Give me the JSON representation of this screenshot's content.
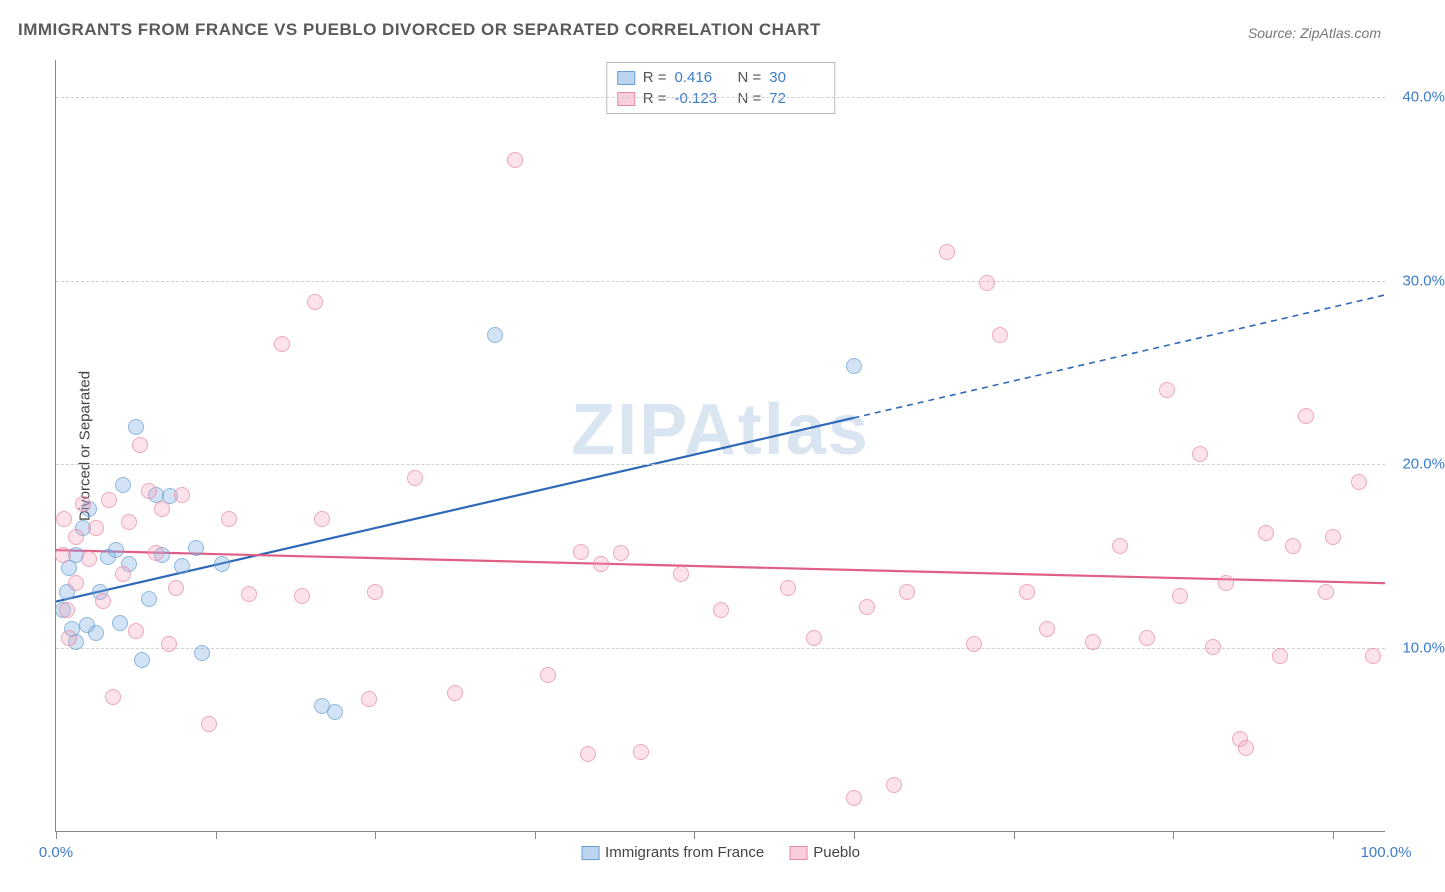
{
  "title": "IMMIGRANTS FROM FRANCE VS PUEBLO DIVORCED OR SEPARATED CORRELATION CHART",
  "source": "Source: ZipAtlas.com",
  "watermark": "ZIPAtlas",
  "ylabel": "Divorced or Separated",
  "chart": {
    "type": "scatter",
    "xlim": [
      0,
      100
    ],
    "ylim": [
      0,
      42
    ],
    "x_ticks": [
      0,
      12,
      24,
      36,
      48,
      60,
      72,
      84,
      96
    ],
    "x_tick_labels_shown": {
      "0": "0.0%",
      "100": "100.0%"
    },
    "y_gridlines": [
      10,
      20,
      30,
      40
    ],
    "y_tick_labels": {
      "10": "10.0%",
      "20": "20.0%",
      "30": "30.0%",
      "40": "40.0%"
    },
    "background_color": "#ffffff",
    "grid_color": "#d0d0d0",
    "axis_color": "#888888",
    "label_color": "#3d7cc9",
    "series": [
      {
        "name": "Immigrants from France",
        "key": "france",
        "color_fill": "rgba(120,170,225,0.45)",
        "color_stroke": "#6a9fd4",
        "trend_color": "#2f68b8",
        "trend_width": 2.2,
        "R": "0.416",
        "N": "30",
        "trend": {
          "x1": 0,
          "y1": 12.5,
          "x2": 60,
          "y2": 22.5,
          "dash_extend_x2": 100,
          "dash_extend_y2": 29.2
        },
        "points": [
          [
            0.5,
            12.0
          ],
          [
            0.8,
            13.0
          ],
          [
            1.0,
            14.3
          ],
          [
            1.2,
            11.0
          ],
          [
            1.5,
            15.0
          ],
          [
            1.5,
            10.3
          ],
          [
            2.0,
            16.5
          ],
          [
            2.3,
            11.2
          ],
          [
            2.5,
            17.5
          ],
          [
            3.0,
            10.8
          ],
          [
            3.3,
            13.0
          ],
          [
            3.9,
            14.9
          ],
          [
            4.5,
            15.3
          ],
          [
            4.8,
            11.3
          ],
          [
            5.0,
            18.8
          ],
          [
            5.5,
            14.5
          ],
          [
            6.0,
            22.0
          ],
          [
            6.5,
            9.3
          ],
          [
            7.0,
            12.6
          ],
          [
            7.5,
            18.3
          ],
          [
            8.0,
            15.0
          ],
          [
            8.6,
            18.2
          ],
          [
            9.5,
            14.4
          ],
          [
            10.5,
            15.4
          ],
          [
            11.0,
            9.7
          ],
          [
            12.5,
            14.5
          ],
          [
            20.0,
            6.8
          ],
          [
            21.0,
            6.5
          ],
          [
            33.0,
            27.0
          ],
          [
            60.0,
            25.3
          ]
        ]
      },
      {
        "name": "Pueblo",
        "key": "pueblo",
        "color_fill": "rgba(245,160,185,0.4)",
        "color_stroke": "#e88aa5",
        "trend_color": "#e05f87",
        "trend_width": 2.2,
        "R": "-0.123",
        "N": "72",
        "trend": {
          "x1": 0,
          "y1": 15.3,
          "x2": 100,
          "y2": 13.5
        },
        "points": [
          [
            0.5,
            15.0
          ],
          [
            0.6,
            17.0
          ],
          [
            0.8,
            12.0
          ],
          [
            1.0,
            10.5
          ],
          [
            1.5,
            16.0
          ],
          [
            1.5,
            13.5
          ],
          [
            2.0,
            17.8
          ],
          [
            2.5,
            14.8
          ],
          [
            3.0,
            16.5
          ],
          [
            3.5,
            12.5
          ],
          [
            4.0,
            18.0
          ],
          [
            4.3,
            7.3
          ],
          [
            5.0,
            14.0
          ],
          [
            5.5,
            16.8
          ],
          [
            6.0,
            10.9
          ],
          [
            6.3,
            21.0
          ],
          [
            7.0,
            18.5
          ],
          [
            7.5,
            15.1
          ],
          [
            8.0,
            17.5
          ],
          [
            8.5,
            10.2
          ],
          [
            9.0,
            13.2
          ],
          [
            9.5,
            18.3
          ],
          [
            11.5,
            5.8
          ],
          [
            13.0,
            17.0
          ],
          [
            14.5,
            12.9
          ],
          [
            17.0,
            26.5
          ],
          [
            18.5,
            12.8
          ],
          [
            19.5,
            28.8
          ],
          [
            20.0,
            17.0
          ],
          [
            23.5,
            7.2
          ],
          [
            24.0,
            13.0
          ],
          [
            27.0,
            19.2
          ],
          [
            30.0,
            7.5
          ],
          [
            34.5,
            36.5
          ],
          [
            37.0,
            8.5
          ],
          [
            39.5,
            15.2
          ],
          [
            40.0,
            4.2
          ],
          [
            41.0,
            14.5
          ],
          [
            42.5,
            15.1
          ],
          [
            44.0,
            4.3
          ],
          [
            47.0,
            14.0
          ],
          [
            50.0,
            12.0
          ],
          [
            55.0,
            13.2
          ],
          [
            57.0,
            10.5
          ],
          [
            60.0,
            1.8
          ],
          [
            61.0,
            12.2
          ],
          [
            63.0,
            2.5
          ],
          [
            64.0,
            13.0
          ],
          [
            67.0,
            31.5
          ],
          [
            69.0,
            10.2
          ],
          [
            70.0,
            29.8
          ],
          [
            71.0,
            27.0
          ],
          [
            73.0,
            13.0
          ],
          [
            74.5,
            11.0
          ],
          [
            78.0,
            10.3
          ],
          [
            80.0,
            15.5
          ],
          [
            82.0,
            10.5
          ],
          [
            83.5,
            24.0
          ],
          [
            84.5,
            12.8
          ],
          [
            86.0,
            20.5
          ],
          [
            87.0,
            10.0
          ],
          [
            88.0,
            13.5
          ],
          [
            89.0,
            5.0
          ],
          [
            89.5,
            4.5
          ],
          [
            91.0,
            16.2
          ],
          [
            92.0,
            9.5
          ],
          [
            93.0,
            15.5
          ],
          [
            94.0,
            22.6
          ],
          [
            96.0,
            16.0
          ],
          [
            98.0,
            19.0
          ],
          [
            99.0,
            9.5
          ],
          [
            95.5,
            13.0
          ]
        ]
      }
    ]
  },
  "legend_top": {
    "r_label": "R =",
    "n_label": "N ="
  },
  "legend_bottom": {
    "items": [
      "Immigrants from France",
      "Pueblo"
    ]
  }
}
